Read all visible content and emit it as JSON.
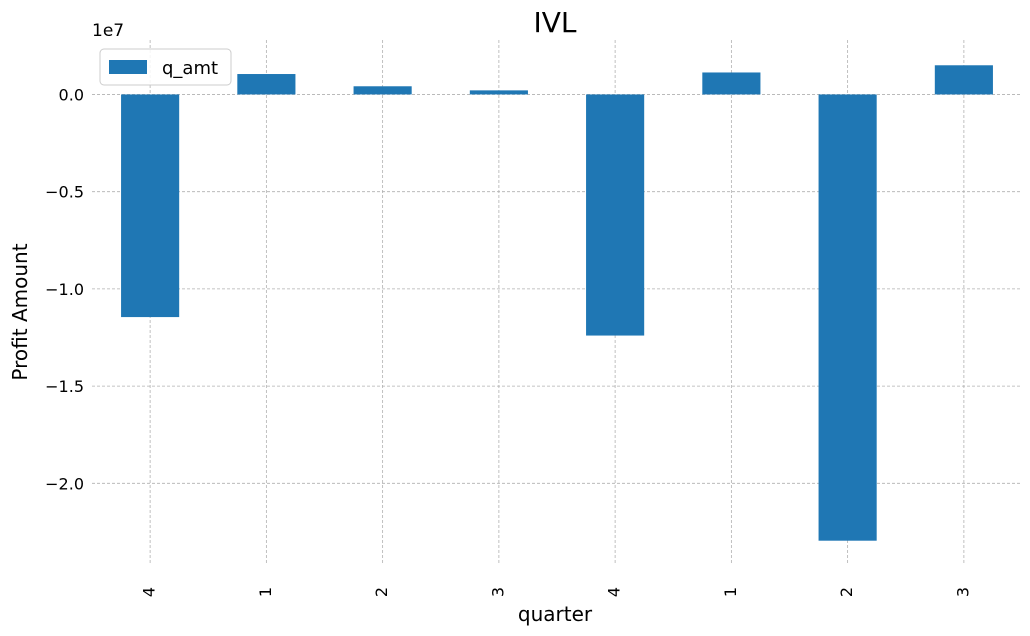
{
  "chart_data": {
    "type": "bar",
    "title": "IVL",
    "xlabel": "quarter",
    "ylabel": "Profit Amount",
    "offset_label": "1e7",
    "categories": [
      "4",
      "1",
      "2",
      "3",
      "4",
      "1",
      "2",
      "3"
    ],
    "series": [
      {
        "name": "q_amt",
        "color": "#1f77b4",
        "values": [
          -11450000,
          1050000,
          420000,
          210000,
          -12400000,
          1130000,
          -22950000,
          1500000
        ]
      }
    ],
    "ylim": [
      -24200000.0,
      2800000.0
    ],
    "yticks": [
      0.0,
      -0.5,
      -1.0,
      -1.5,
      -2.0
    ],
    "ytick_scale": 10000000.0,
    "ytick_labels": [
      "0.0",
      "−0.5",
      "−1.0",
      "−1.5",
      "−2.0"
    ],
    "grid": true,
    "legend_position": "upper-left"
  }
}
